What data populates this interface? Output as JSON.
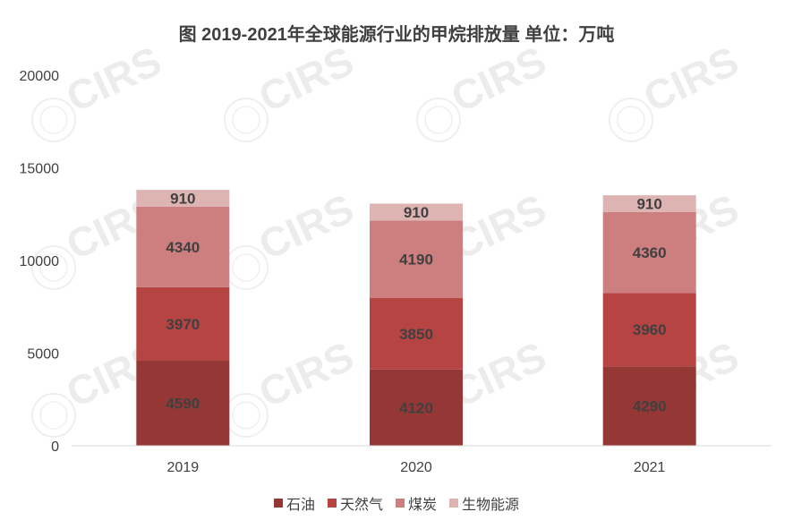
{
  "chart_data": {
    "type": "bar",
    "stacked": true,
    "title": "图 2019-2021年全球能源行业的甲烷排放量 单位：万吨",
    "categories": [
      "2019",
      "2020",
      "2021"
    ],
    "series": [
      {
        "name": "石油",
        "values": [
          4590,
          4120,
          4290
        ],
        "color": "#953734"
      },
      {
        "name": "天然气",
        "values": [
          3970,
          3850,
          3960
        ],
        "color": "#b64442"
      },
      {
        "name": "煤炭",
        "values": [
          4340,
          4190,
          4360
        ],
        "color": "#cc7f7e"
      },
      {
        "name": "生物能源",
        "values": [
          910,
          910,
          910
        ],
        "color": "#deb4b3"
      }
    ],
    "ylim": [
      0,
      20000
    ],
    "yticks": [
      0,
      5000,
      10000,
      15000,
      20000
    ],
    "grid": false,
    "legend_position": "bottom"
  },
  "watermark": {
    "text": "CIRS",
    "seal_text": "CIRS"
  }
}
